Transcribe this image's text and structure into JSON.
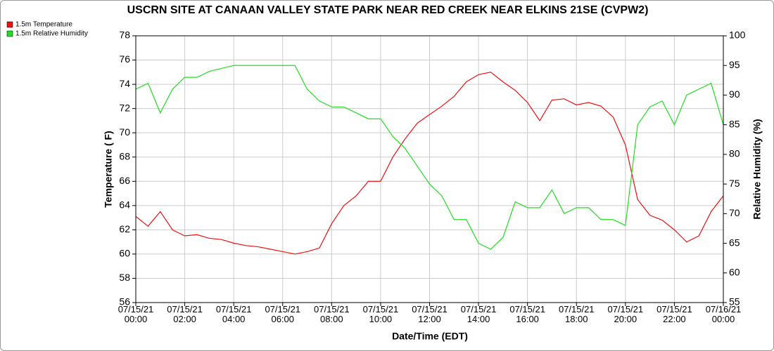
{
  "chart_data": {
    "type": "line",
    "title": "USCRN SITE AT CANAAN VALLEY STATE PARK NEAR RED CREEK NEAR ELKINS 21SE (CVPW2)",
    "x_label": "Date/Time (EDT)",
    "y_label": "Temperature ( F)",
    "y2_label": "Relative Humidity (%)",
    "x": [
      0,
      0.5,
      1,
      1.5,
      2,
      2.5,
      3,
      3.5,
      4,
      4.5,
      5,
      5.5,
      6,
      6.5,
      7,
      7.5,
      8,
      8.5,
      9,
      9.5,
      10,
      10.5,
      11,
      11.5,
      12,
      12.5,
      13,
      13.5,
      14,
      14.5,
      15,
      15.5,
      16,
      16.5,
      17,
      17.5,
      18,
      18.5,
      19,
      19.5,
      20,
      20.5,
      21,
      21.5,
      22,
      22.5,
      23,
      23.5,
      24
    ],
    "series": [
      {
        "name": "1.5m Temperature",
        "color": "#ee1111",
        "axis": "y",
        "values": [
          63.1,
          62.3,
          63.5,
          62.0,
          61.5,
          61.6,
          61.3,
          61.2,
          60.9,
          60.7,
          60.6,
          60.4,
          60.2,
          60.0,
          60.2,
          60.5,
          62.5,
          64.0,
          64.8,
          66.0,
          66.0,
          68.0,
          69.5,
          70.8,
          71.5,
          72.2,
          73.0,
          74.2,
          74.8,
          75.0,
          74.2,
          73.5,
          72.5,
          71.0,
          72.7,
          72.8,
          72.3,
          72.5,
          72.2,
          71.3,
          69.0,
          64.5,
          63.2,
          62.8,
          62.0,
          61.0,
          61.5,
          63.5,
          64.8
        ]
      },
      {
        "name": "1.5m Relative Humidity",
        "color": "#22dd22",
        "axis": "y2",
        "values": [
          91,
          92,
          87,
          91,
          93,
          93,
          94,
          94.5,
          95,
          95,
          95,
          95,
          95,
          95,
          91,
          89,
          88,
          88,
          87,
          86,
          86,
          83,
          81,
          78,
          75,
          73,
          69,
          69,
          65,
          64,
          66,
          72,
          71,
          71,
          74,
          70,
          71,
          71,
          69,
          69,
          68,
          85,
          88,
          89,
          85,
          90,
          91,
          92,
          85
        ]
      }
    ],
    "xlim": [
      0,
      24
    ],
    "xticks": [
      {
        "value": 0,
        "label": "07/15/21 00:00"
      },
      {
        "value": 2,
        "label": "07/15/21 02:00"
      },
      {
        "value": 4,
        "label": "07/15/21 04:00"
      },
      {
        "value": 6,
        "label": "07/15/21 06:00"
      },
      {
        "value": 8,
        "label": "07/15/21 08:00"
      },
      {
        "value": 10,
        "label": "07/15/21 10:00"
      },
      {
        "value": 12,
        "label": "07/15/21 12:00"
      },
      {
        "value": 14,
        "label": "07/15/21 14:00"
      },
      {
        "value": 16,
        "label": "07/15/21 16:00"
      },
      {
        "value": 18,
        "label": "07/15/21 18:00"
      },
      {
        "value": 20,
        "label": "07/15/21 20:00"
      },
      {
        "value": 22,
        "label": "07/15/21 22:00"
      },
      {
        "value": 24,
        "label": "07/16/21 00:00"
      }
    ],
    "ylim": [
      56,
      78
    ],
    "yticks": [
      56,
      58,
      60,
      62,
      64,
      66,
      68,
      70,
      72,
      74,
      76,
      78
    ],
    "y2lim": [
      55,
      100
    ],
    "y2ticks": [
      55,
      60,
      65,
      70,
      75,
      80,
      85,
      90,
      95,
      100
    ],
    "grid": true
  }
}
